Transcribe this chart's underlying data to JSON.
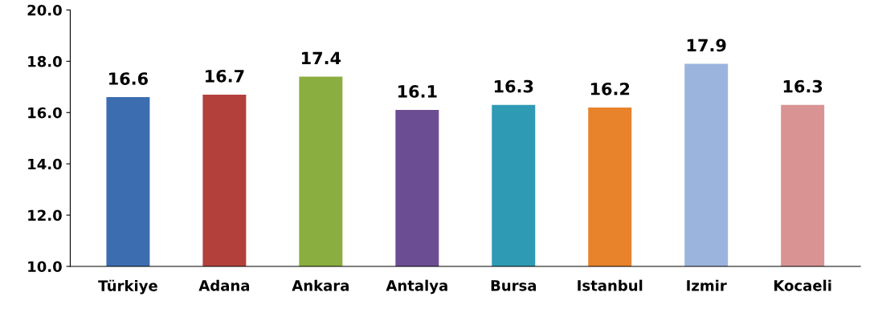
{
  "chart_data": {
    "type": "bar",
    "categories": [
      "Türkiye",
      "Adana",
      "Ankara",
      "Antalya",
      "Bursa",
      "Istanbul",
      "Izmir",
      "Kocaeli"
    ],
    "values": [
      16.6,
      16.7,
      17.4,
      16.1,
      16.3,
      16.2,
      17.9,
      16.3
    ],
    "colors": [
      "#3c6db0",
      "#b3403b",
      "#8aae3f",
      "#6b4d94",
      "#2f9ab4",
      "#e8822b",
      "#9bb4de",
      "#d89392"
    ],
    "ylim": [
      10,
      20
    ],
    "yticks": [
      {
        "value": 10,
        "label": "10.0"
      },
      {
        "value": 12,
        "label": "12.0"
      },
      {
        "value": 14,
        "label": "14.0"
      },
      {
        "value": 16,
        "label": "16.0"
      },
      {
        "value": 18,
        "label": "18.0"
      },
      {
        "value": 20,
        "label": "20.0"
      }
    ],
    "data_labels": true,
    "grid": false
  }
}
